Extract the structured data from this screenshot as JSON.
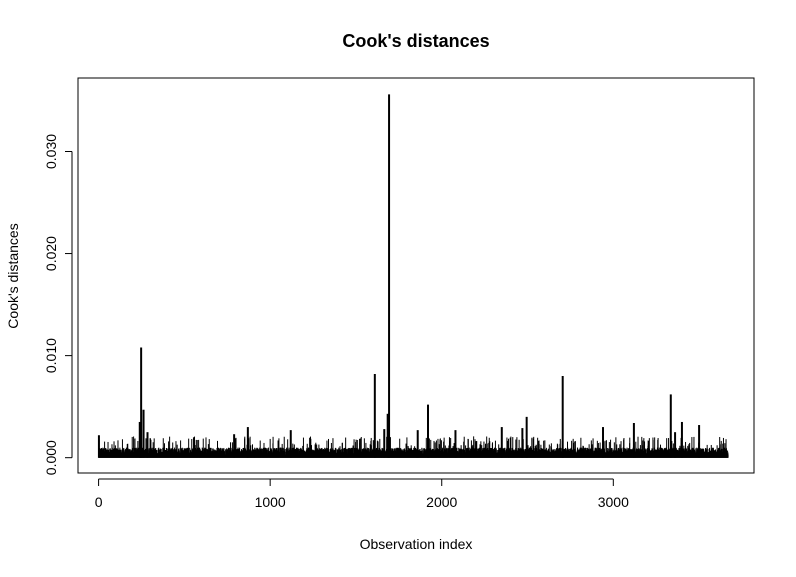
{
  "chart_data": {
    "type": "bar",
    "title": "Cook's distances",
    "xlabel": "Observation index",
    "ylabel": "Cook's distances",
    "xlim": [
      -120,
      3820
    ],
    "ylim": [
      -0.0015,
      0.0372
    ],
    "x_ticks": [
      {
        "value": 0,
        "label": "0"
      },
      {
        "value": 1000,
        "label": "1000"
      },
      {
        "value": 2000,
        "label": "2000"
      },
      {
        "value": 3000,
        "label": "3000"
      }
    ],
    "y_ticks": [
      {
        "value": 0.0,
        "label": "0.000"
      },
      {
        "value": 0.01,
        "label": "0.010"
      },
      {
        "value": 0.02,
        "label": "0.020"
      },
      {
        "value": 0.03,
        "label": "0.030"
      }
    ],
    "grid": false,
    "legend": "none",
    "n_observations": 3670,
    "baseline_level": 0.0007,
    "notable_points": [
      {
        "x": 2,
        "y": 0.0022
      },
      {
        "x": 240,
        "y": 0.0035
      },
      {
        "x": 248,
        "y": 0.0108
      },
      {
        "x": 262,
        "y": 0.0047
      },
      {
        "x": 285,
        "y": 0.0025
      },
      {
        "x": 790,
        "y": 0.0023
      },
      {
        "x": 870,
        "y": 0.003
      },
      {
        "x": 1120,
        "y": 0.0027
      },
      {
        "x": 1610,
        "y": 0.0082
      },
      {
        "x": 1665,
        "y": 0.0028
      },
      {
        "x": 1685,
        "y": 0.0043
      },
      {
        "x": 1693,
        "y": 0.0356
      },
      {
        "x": 1860,
        "y": 0.0027
      },
      {
        "x": 1920,
        "y": 0.0052
      },
      {
        "x": 2080,
        "y": 0.0027
      },
      {
        "x": 2350,
        "y": 0.003
      },
      {
        "x": 2470,
        "y": 0.0029
      },
      {
        "x": 2495,
        "y": 0.004
      },
      {
        "x": 2705,
        "y": 0.008
      },
      {
        "x": 2940,
        "y": 0.003
      },
      {
        "x": 3120,
        "y": 0.0034
      },
      {
        "x": 3335,
        "y": 0.0062
      },
      {
        "x": 3360,
        "y": 0.0025
      },
      {
        "x": 3400,
        "y": 0.0035
      },
      {
        "x": 3500,
        "y": 0.0032
      }
    ],
    "series_color": "#000000"
  }
}
